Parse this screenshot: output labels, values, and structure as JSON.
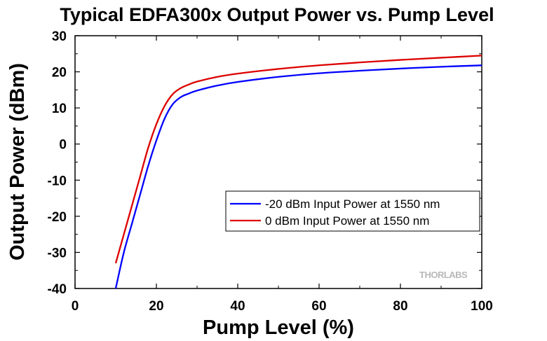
{
  "chart_data": {
    "type": "line",
    "title": "Typical EDFA300x Output Power vs. Pump Level",
    "xlabel": "Pump Level (%)",
    "ylabel": "Output Power (dBm)",
    "xlim": [
      0,
      100
    ],
    "ylim": [
      -40,
      30
    ],
    "xticks": [
      0,
      20,
      40,
      60,
      80,
      100
    ],
    "yticks": [
      -40,
      -30,
      -20,
      -10,
      0,
      10,
      20,
      30
    ],
    "grid": false,
    "legend_position": "bottom-right",
    "series": [
      {
        "name": "-20 dBm Input Power at 1550 nm",
        "color": "#0000ff",
        "x": [
          10,
          12,
          14,
          16,
          18,
          20,
          22,
          24,
          26,
          28,
          30,
          35,
          40,
          50,
          60,
          70,
          80,
          90,
          100
        ],
        "y": [
          -40,
          -30,
          -22,
          -14,
          -6,
          1,
          7,
          11,
          13,
          14,
          14.8,
          16.2,
          17.2,
          18.6,
          19.6,
          20.3,
          20.9,
          21.4,
          21.8
        ]
      },
      {
        "name": "0 dBm Input Power at 1550 nm",
        "color": "#dd0000",
        "x": [
          10,
          12,
          14,
          16,
          18,
          20,
          22,
          24,
          26,
          28,
          30,
          35,
          40,
          50,
          60,
          70,
          80,
          90,
          100
        ],
        "y": [
          -33,
          -25,
          -17,
          -9,
          -1,
          5.5,
          10.5,
          13.8,
          15.5,
          16.5,
          17.3,
          18.6,
          19.5,
          20.8,
          21.8,
          22.6,
          23.3,
          23.9,
          24.5
        ]
      }
    ]
  },
  "watermark": "THORLABS"
}
